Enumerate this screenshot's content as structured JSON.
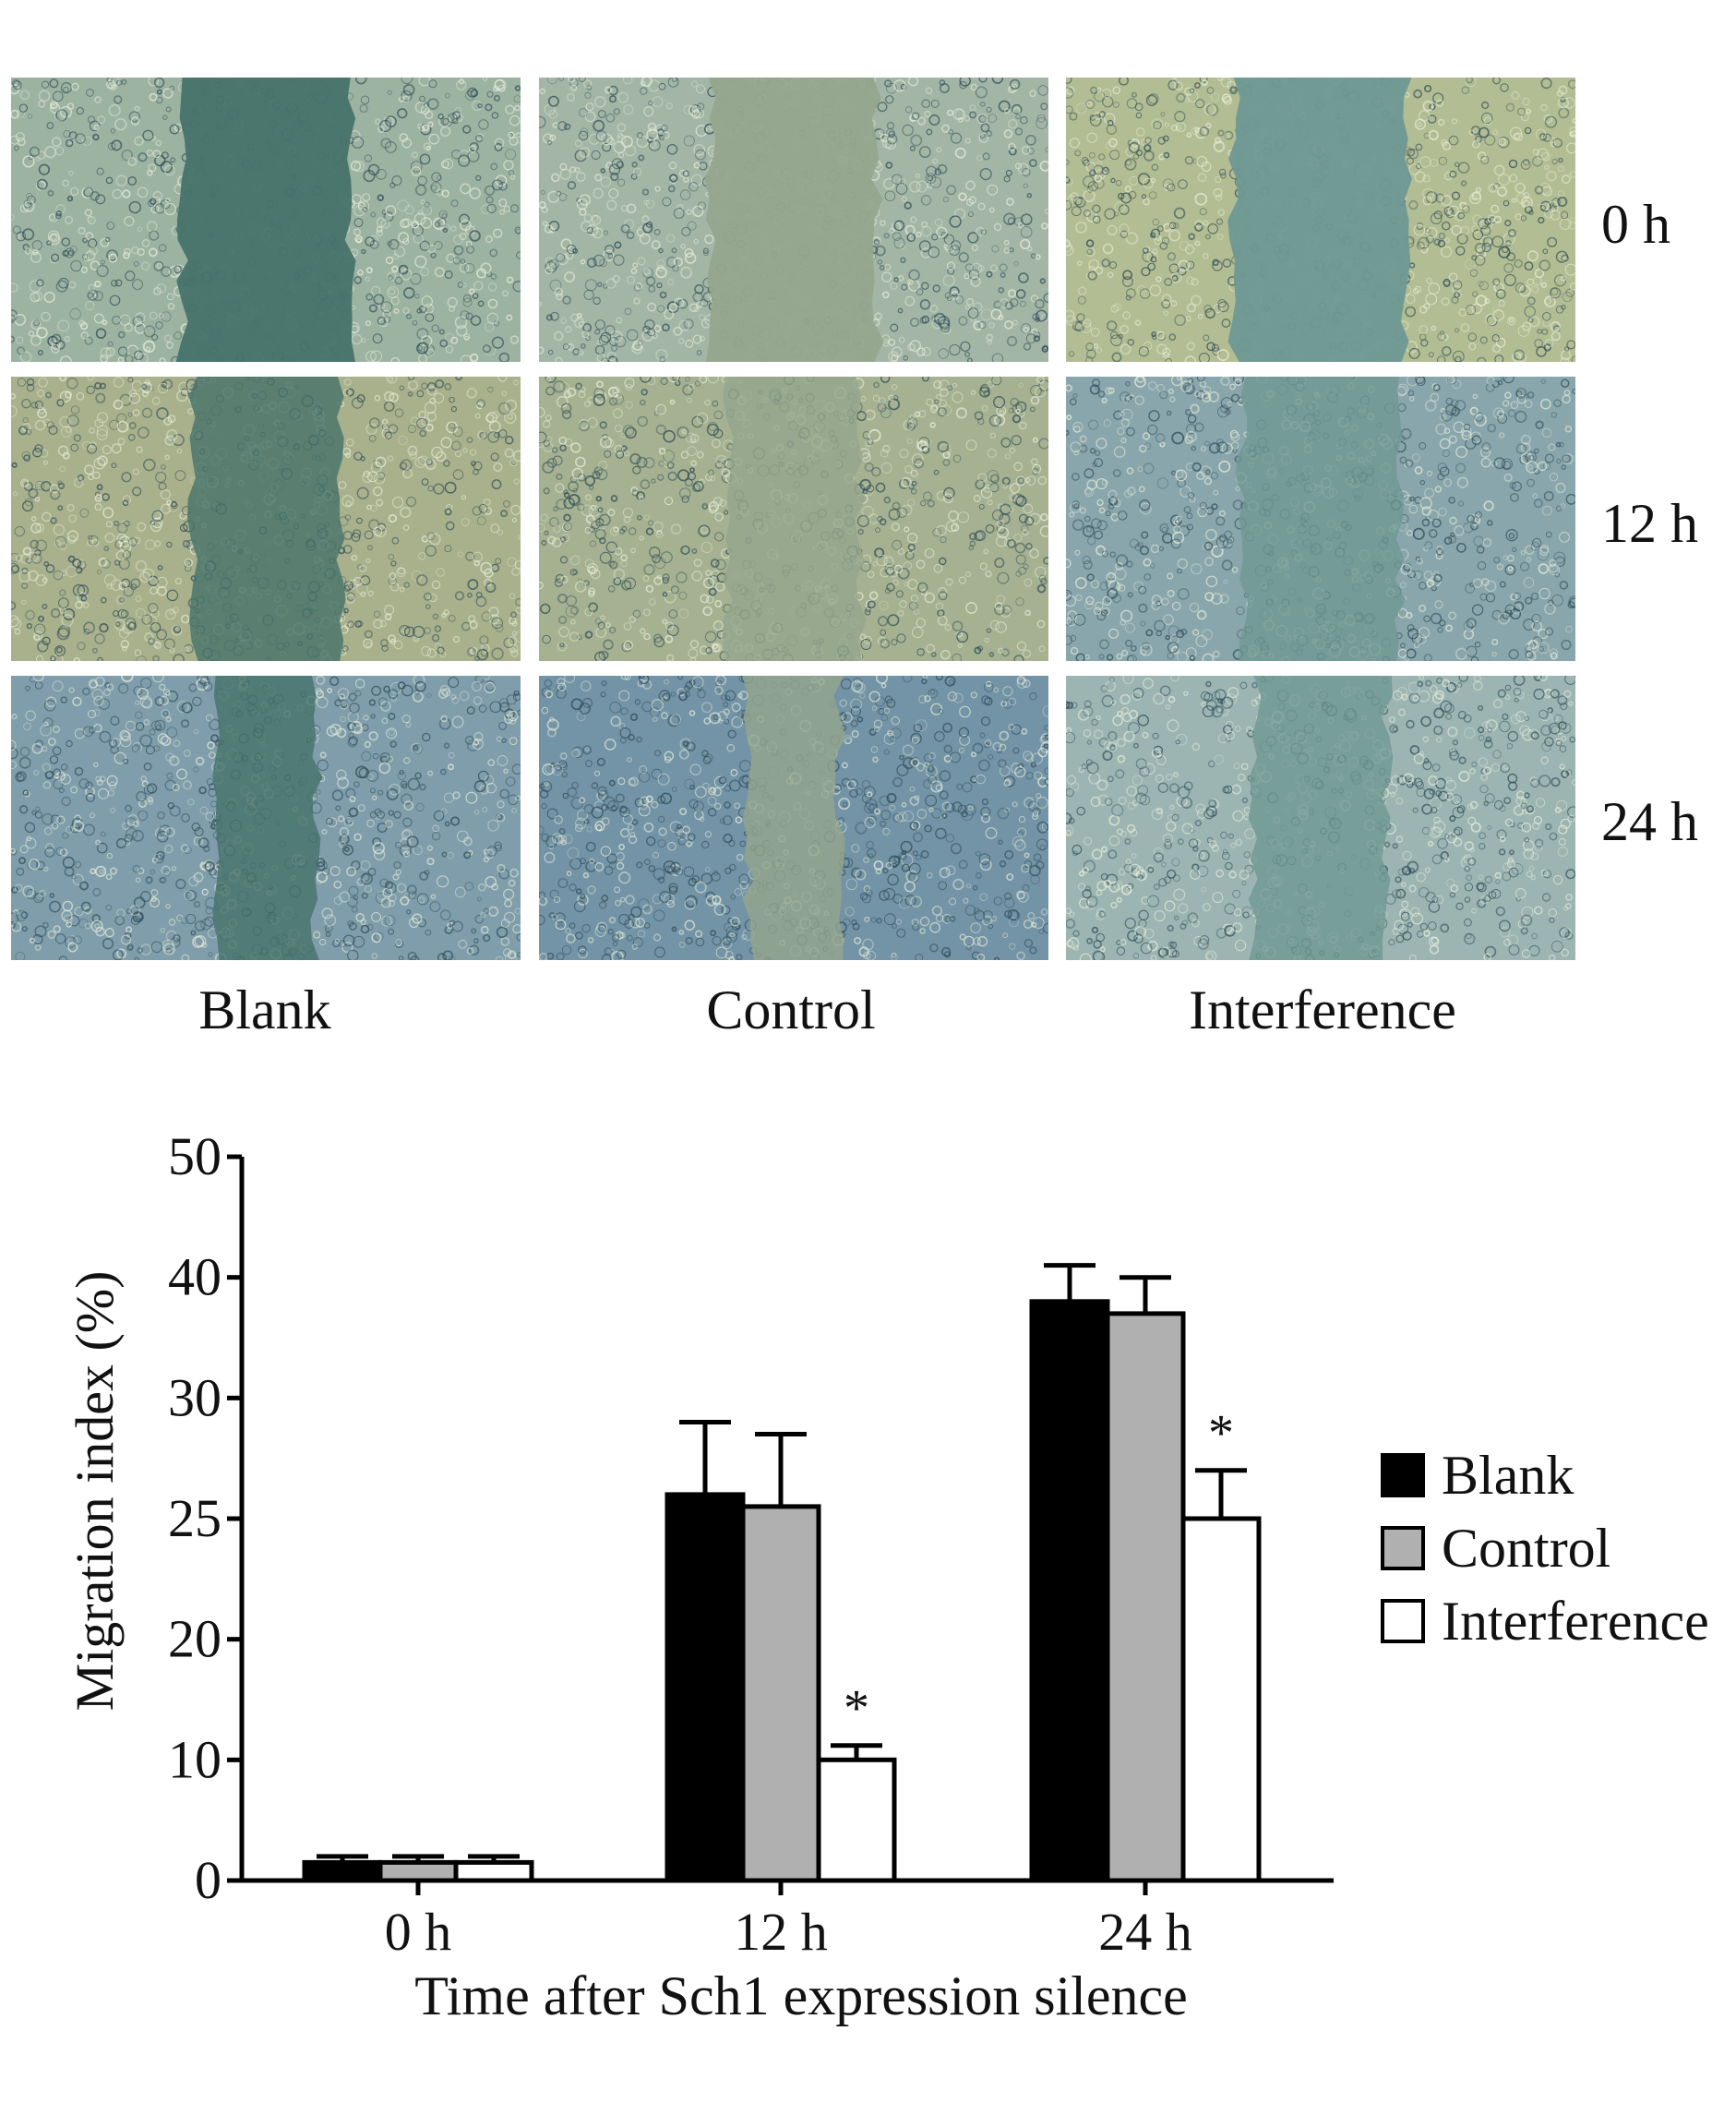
{
  "micrograph": {
    "columns": [
      "Blank",
      "Control",
      "Interference"
    ],
    "rows": [
      "0 h",
      "12 h",
      "24 h"
    ],
    "gap_fraction": [
      [
        0.33,
        0.33,
        0.34
      ],
      [
        0.29,
        0.26,
        0.31
      ],
      [
        0.2,
        0.18,
        0.26
      ]
    ],
    "colors": {
      "cell_blank": [
        "#9db3a2",
        "#a8b08c",
        "#7f9dab"
      ],
      "cell_control": [
        "#a3b6a6",
        "#a5b191",
        "#7393a6"
      ],
      "cell_interference": [
        "#b3bd93",
        "#8aa6ad",
        "#9cb5b3"
      ],
      "gap": [
        "#46736a",
        "#95a68d",
        "#6f9894"
      ]
    }
  },
  "chart_data": {
    "type": "bar",
    "title": "",
    "categories": [
      "0 h",
      "12 h",
      "24 h"
    ],
    "xlabel": "Time after Sch1 expression silence",
    "ylabel": "Migration index (%)",
    "y_ticks": [
      0,
      10,
      20,
      25,
      30,
      40,
      50
    ],
    "y_scale_note": "axis with linear tick spacing; labels as printed",
    "series": [
      {
        "name": "Blank",
        "values": [
          1.5,
          26,
          38
        ],
        "errors": [
          0.5,
          3,
          3
        ],
        "color": "#000000"
      },
      {
        "name": "Control",
        "values": [
          1.5,
          25.5,
          37
        ],
        "errors": [
          0.5,
          3,
          3
        ],
        "color": "#b0b0b0"
      },
      {
        "name": "Interference",
        "values": [
          1.5,
          10,
          25
        ],
        "errors": [
          0.5,
          1.2,
          2
        ],
        "color": "#ffffff"
      }
    ],
    "significance": [
      {
        "category": "12 h",
        "series": "Interference",
        "mark": "*"
      },
      {
        "category": "24 h",
        "series": "Interference",
        "mark": "*"
      }
    ],
    "legend": "right",
    "grid": false
  }
}
